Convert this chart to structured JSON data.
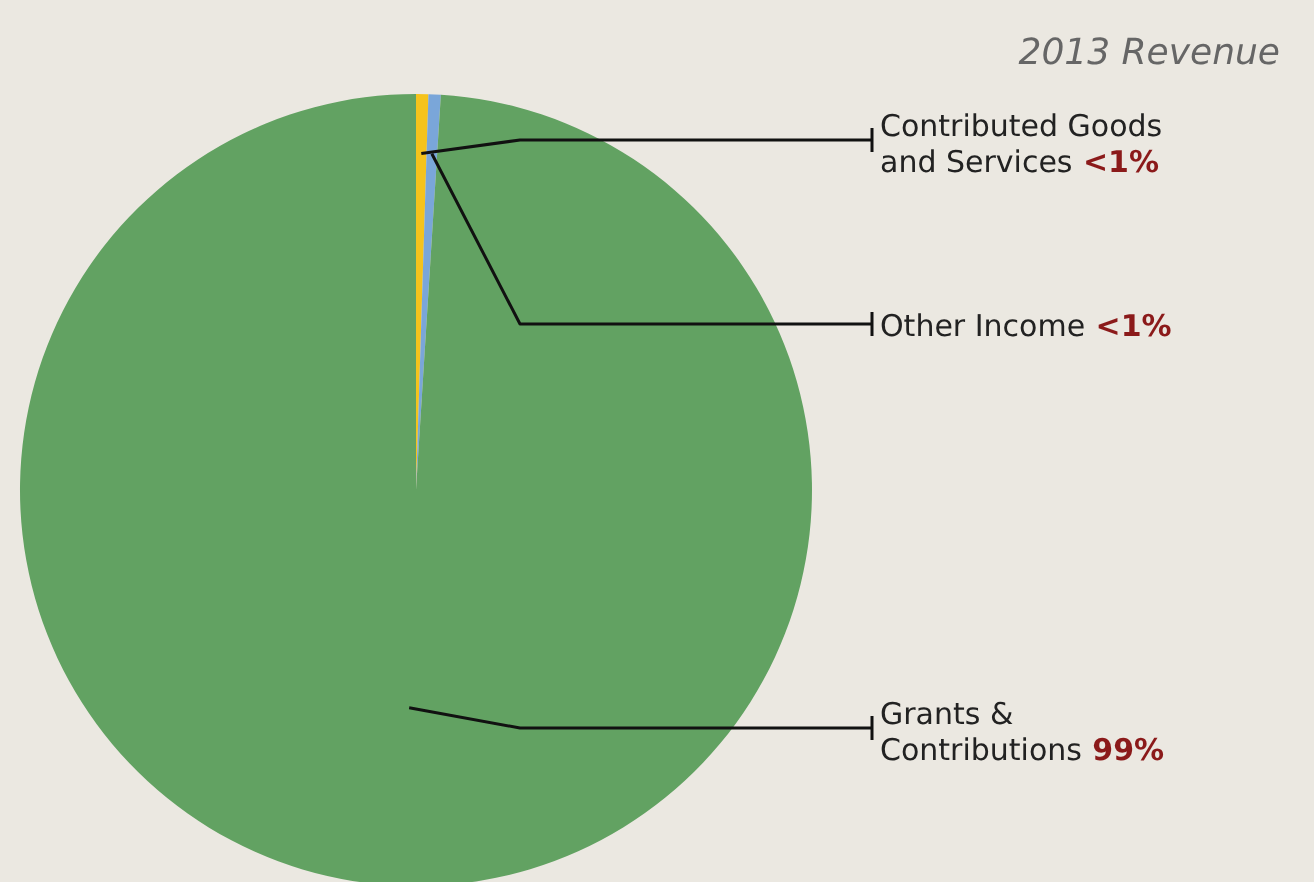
{
  "chart_data": {
    "type": "pie",
    "title": "2013 Revenue",
    "categories": [
      "Contributed Goods and Services",
      "Other Income",
      "Grants & Contributions"
    ],
    "values": [
      0.5,
      0.5,
      99
    ],
    "value_labels": [
      "<1%",
      "<1%",
      "99%"
    ],
    "colors": [
      "#f5c31c",
      "#7aa6d9",
      "#62a262"
    ]
  }
}
